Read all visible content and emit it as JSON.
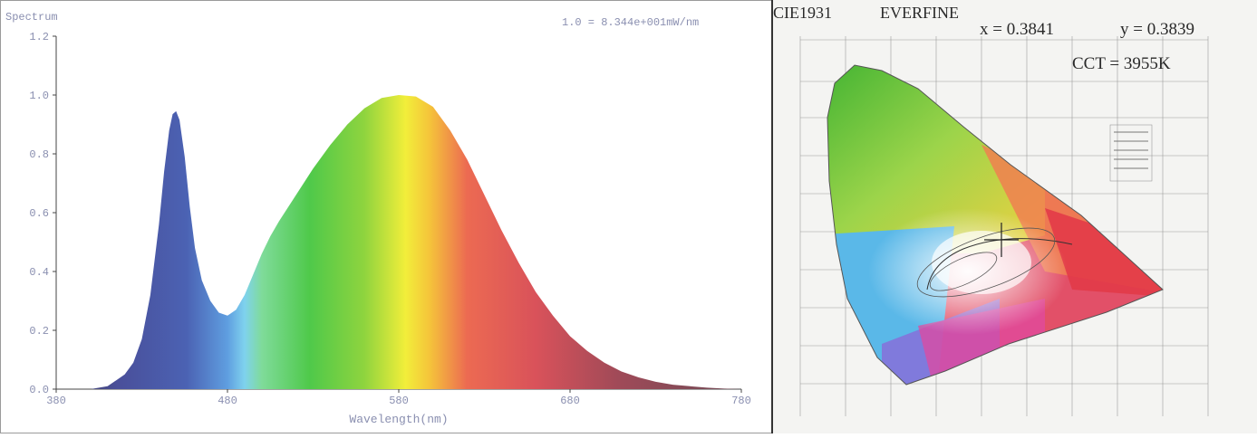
{
  "spectrum": {
    "title": "Spectrum",
    "scale_note": "1.0 = 8.344e+001mW/nm",
    "xlabel": "Wavelength(nm)"
  },
  "cie": {
    "title": "CIE1931",
    "brand": "EVERFINE",
    "x_readout": "x = 0.3841",
    "y_readout": "y = 0.3839",
    "cct_readout": "CCT = 3955K"
  },
  "chart_data": [
    {
      "type": "area",
      "title": "Spectrum",
      "xlabel": "Wavelength(nm)",
      "ylabel": "",
      "xlim": [
        380,
        780
      ],
      "ylim": [
        0,
        1.2
      ],
      "x_ticks": [
        380,
        480,
        580,
        680,
        780
      ],
      "y_ticks": [
        0.0,
        0.2,
        0.4,
        0.6,
        0.8,
        1.0,
        1.2
      ],
      "x_tick_labels": [
        "380",
        "480",
        "580",
        "680",
        "780"
      ],
      "y_tick_labels": [
        "0.0",
        "0.2",
        "0.4",
        "0.6",
        "0.8",
        "1.0",
        "1.2"
      ],
      "fill": "visible-spectrum gradient",
      "series": [
        {
          "x": [
            380,
            390,
            400,
            410,
            420,
            425,
            430,
            435,
            440,
            443,
            446,
            448,
            450,
            452,
            455,
            458,
            461,
            465,
            470,
            475,
            480,
            485,
            490,
            495,
            500,
            505,
            510,
            520,
            530,
            540,
            550,
            560,
            570,
            580,
            590,
            600,
            610,
            620,
            630,
            640,
            650,
            660,
            670,
            680,
            690,
            700,
            710,
            720,
            730,
            740,
            750,
            760,
            770,
            780
          ],
          "y": [
            0.0,
            0.0,
            0.0,
            0.01,
            0.05,
            0.09,
            0.17,
            0.32,
            0.56,
            0.74,
            0.88,
            0.935,
            0.945,
            0.915,
            0.79,
            0.62,
            0.48,
            0.37,
            0.3,
            0.26,
            0.25,
            0.27,
            0.32,
            0.39,
            0.46,
            0.52,
            0.57,
            0.66,
            0.75,
            0.83,
            0.9,
            0.955,
            0.99,
            1.0,
            0.995,
            0.96,
            0.88,
            0.78,
            0.66,
            0.54,
            0.43,
            0.33,
            0.25,
            0.18,
            0.13,
            0.09,
            0.06,
            0.04,
            0.025,
            0.015,
            0.01,
            0.005,
            0.002,
            0.0
          ]
        }
      ]
    },
    {
      "type": "scatter",
      "title": "CIE1931",
      "points": [
        {
          "x": 0.3841,
          "y": 0.3839,
          "label": "CCT = 3955K"
        }
      ]
    }
  ]
}
